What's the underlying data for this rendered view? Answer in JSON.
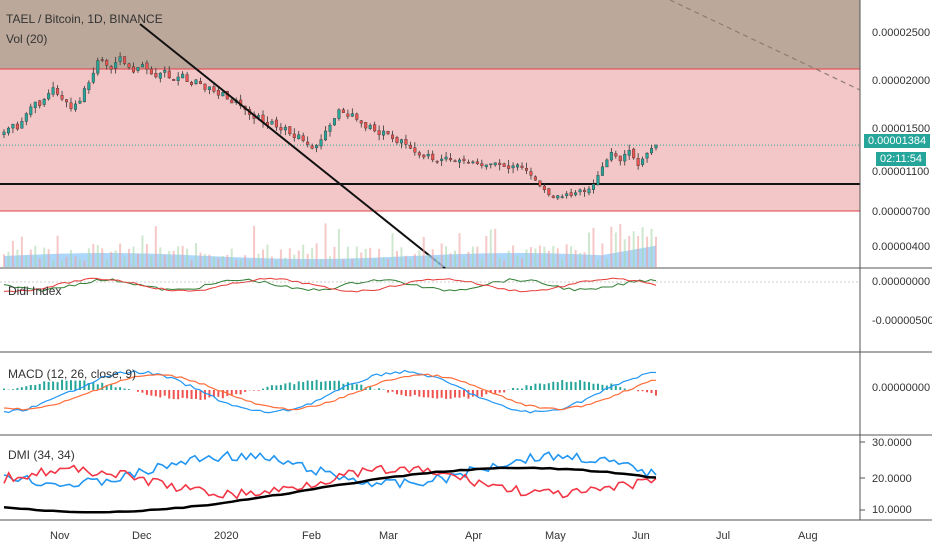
{
  "chart_data": {
    "type": "candlestick",
    "title": "TAEL / Bitcoin, 1D, BINANCE",
    "x_ticks": [
      "Nov",
      "Dec",
      "2020",
      "Feb",
      "Mar",
      "Apr",
      "May",
      "Jun",
      "Jul",
      "Aug"
    ],
    "price_axis_ticks": [
      "0.00002500",
      "0.00002000",
      "0.00001500",
      "0.00001100",
      "0.00000700",
      "0.00000400"
    ],
    "last_price": "0.00001384",
    "countdown": "02:11:54",
    "colors": {
      "up": "#26a69a",
      "down": "#ef5350",
      "line": "#1f1f1f",
      "zone": "#f3c7c7",
      "upper_zone": "#bba89a",
      "volume": "#90caf9",
      "macd": "#2196f3",
      "signal": "#ff6d3a",
      "di_plus": "#2196f3",
      "di_minus": "#f23645",
      "adx": "#000000"
    },
    "panels": [
      {
        "name": "Vol (20)",
        "legend": "Vol (20)"
      },
      {
        "name": "Didi Index",
        "legend": "Didi Index",
        "ticks": [
          "0.00000000",
          "-0.00000500"
        ]
      },
      {
        "name": "MACD",
        "legend": "MACD (12, 26, close, 9)",
        "ticks": [
          "0.00000000"
        ]
      },
      {
        "name": "DMI",
        "legend": "DMI (34, 34)",
        "ticks": [
          "30.0000",
          "20.0000",
          "10.0000"
        ]
      }
    ],
    "series": [
      {
        "name": "price_close",
        "values": [
          15.2,
          15.6,
          16.0,
          15.5,
          16.3,
          17.1,
          17.8,
          18.3,
          17.9,
          18.6,
          19.2,
          19.8,
          19.1,
          18.6,
          18.3,
          17.6,
          18.1,
          18.4,
          19.7,
          20.3,
          21.3,
          22.6,
          22.7,
          22.1,
          21.7,
          22.4,
          23.0,
          22.3,
          21.9,
          21.4,
          21.9,
          22.2,
          21.7,
          21.2,
          20.9,
          21.3,
          21.6,
          20.8,
          20.5,
          20.9,
          21.2,
          20.4,
          20.1,
          20.6,
          20.2,
          19.6,
          19.9,
          19.4,
          19.0,
          19.3,
          18.6,
          18.2,
          18.5,
          17.9,
          17.5,
          17.0,
          16.6,
          16.9,
          16.2,
          15.9,
          16.3,
          15.7,
          15.4,
          15.7,
          15.0,
          14.6,
          14.9,
          14.3,
          13.9,
          13.5,
          13.8,
          14.4,
          15.3,
          15.9,
          16.6,
          17.5,
          17.2,
          16.8,
          17.1,
          16.5,
          16.1,
          15.6,
          15.9,
          15.3,
          14.9,
          15.3,
          15.0,
          14.5,
          14.1,
          14.4,
          13.9,
          13.5,
          13.1,
          12.8,
          12.6,
          12.9,
          12.3,
          12.1,
          12.4,
          12.6,
          12.3,
          12.1,
          12.3,
          12.2,
          12.0,
          12.1,
          11.9,
          11.7,
          11.8,
          11.9,
          12.0,
          11.8,
          11.6,
          11.4,
          11.7,
          11.8,
          11.5,
          11.2,
          10.7,
          10.2,
          9.6,
          9.2,
          8.7,
          8.4,
          8.6,
          8.5,
          8.8,
          8.6,
          8.9,
          9.2,
          9.0,
          9.3,
          9.8,
          10.7,
          11.6,
          12.3,
          13.1,
          12.7,
          12.2,
          12.9,
          13.3,
          12.5,
          11.7,
          12.4,
          13.0,
          13.5,
          13.84
        ]
      }
    ]
  }
}
